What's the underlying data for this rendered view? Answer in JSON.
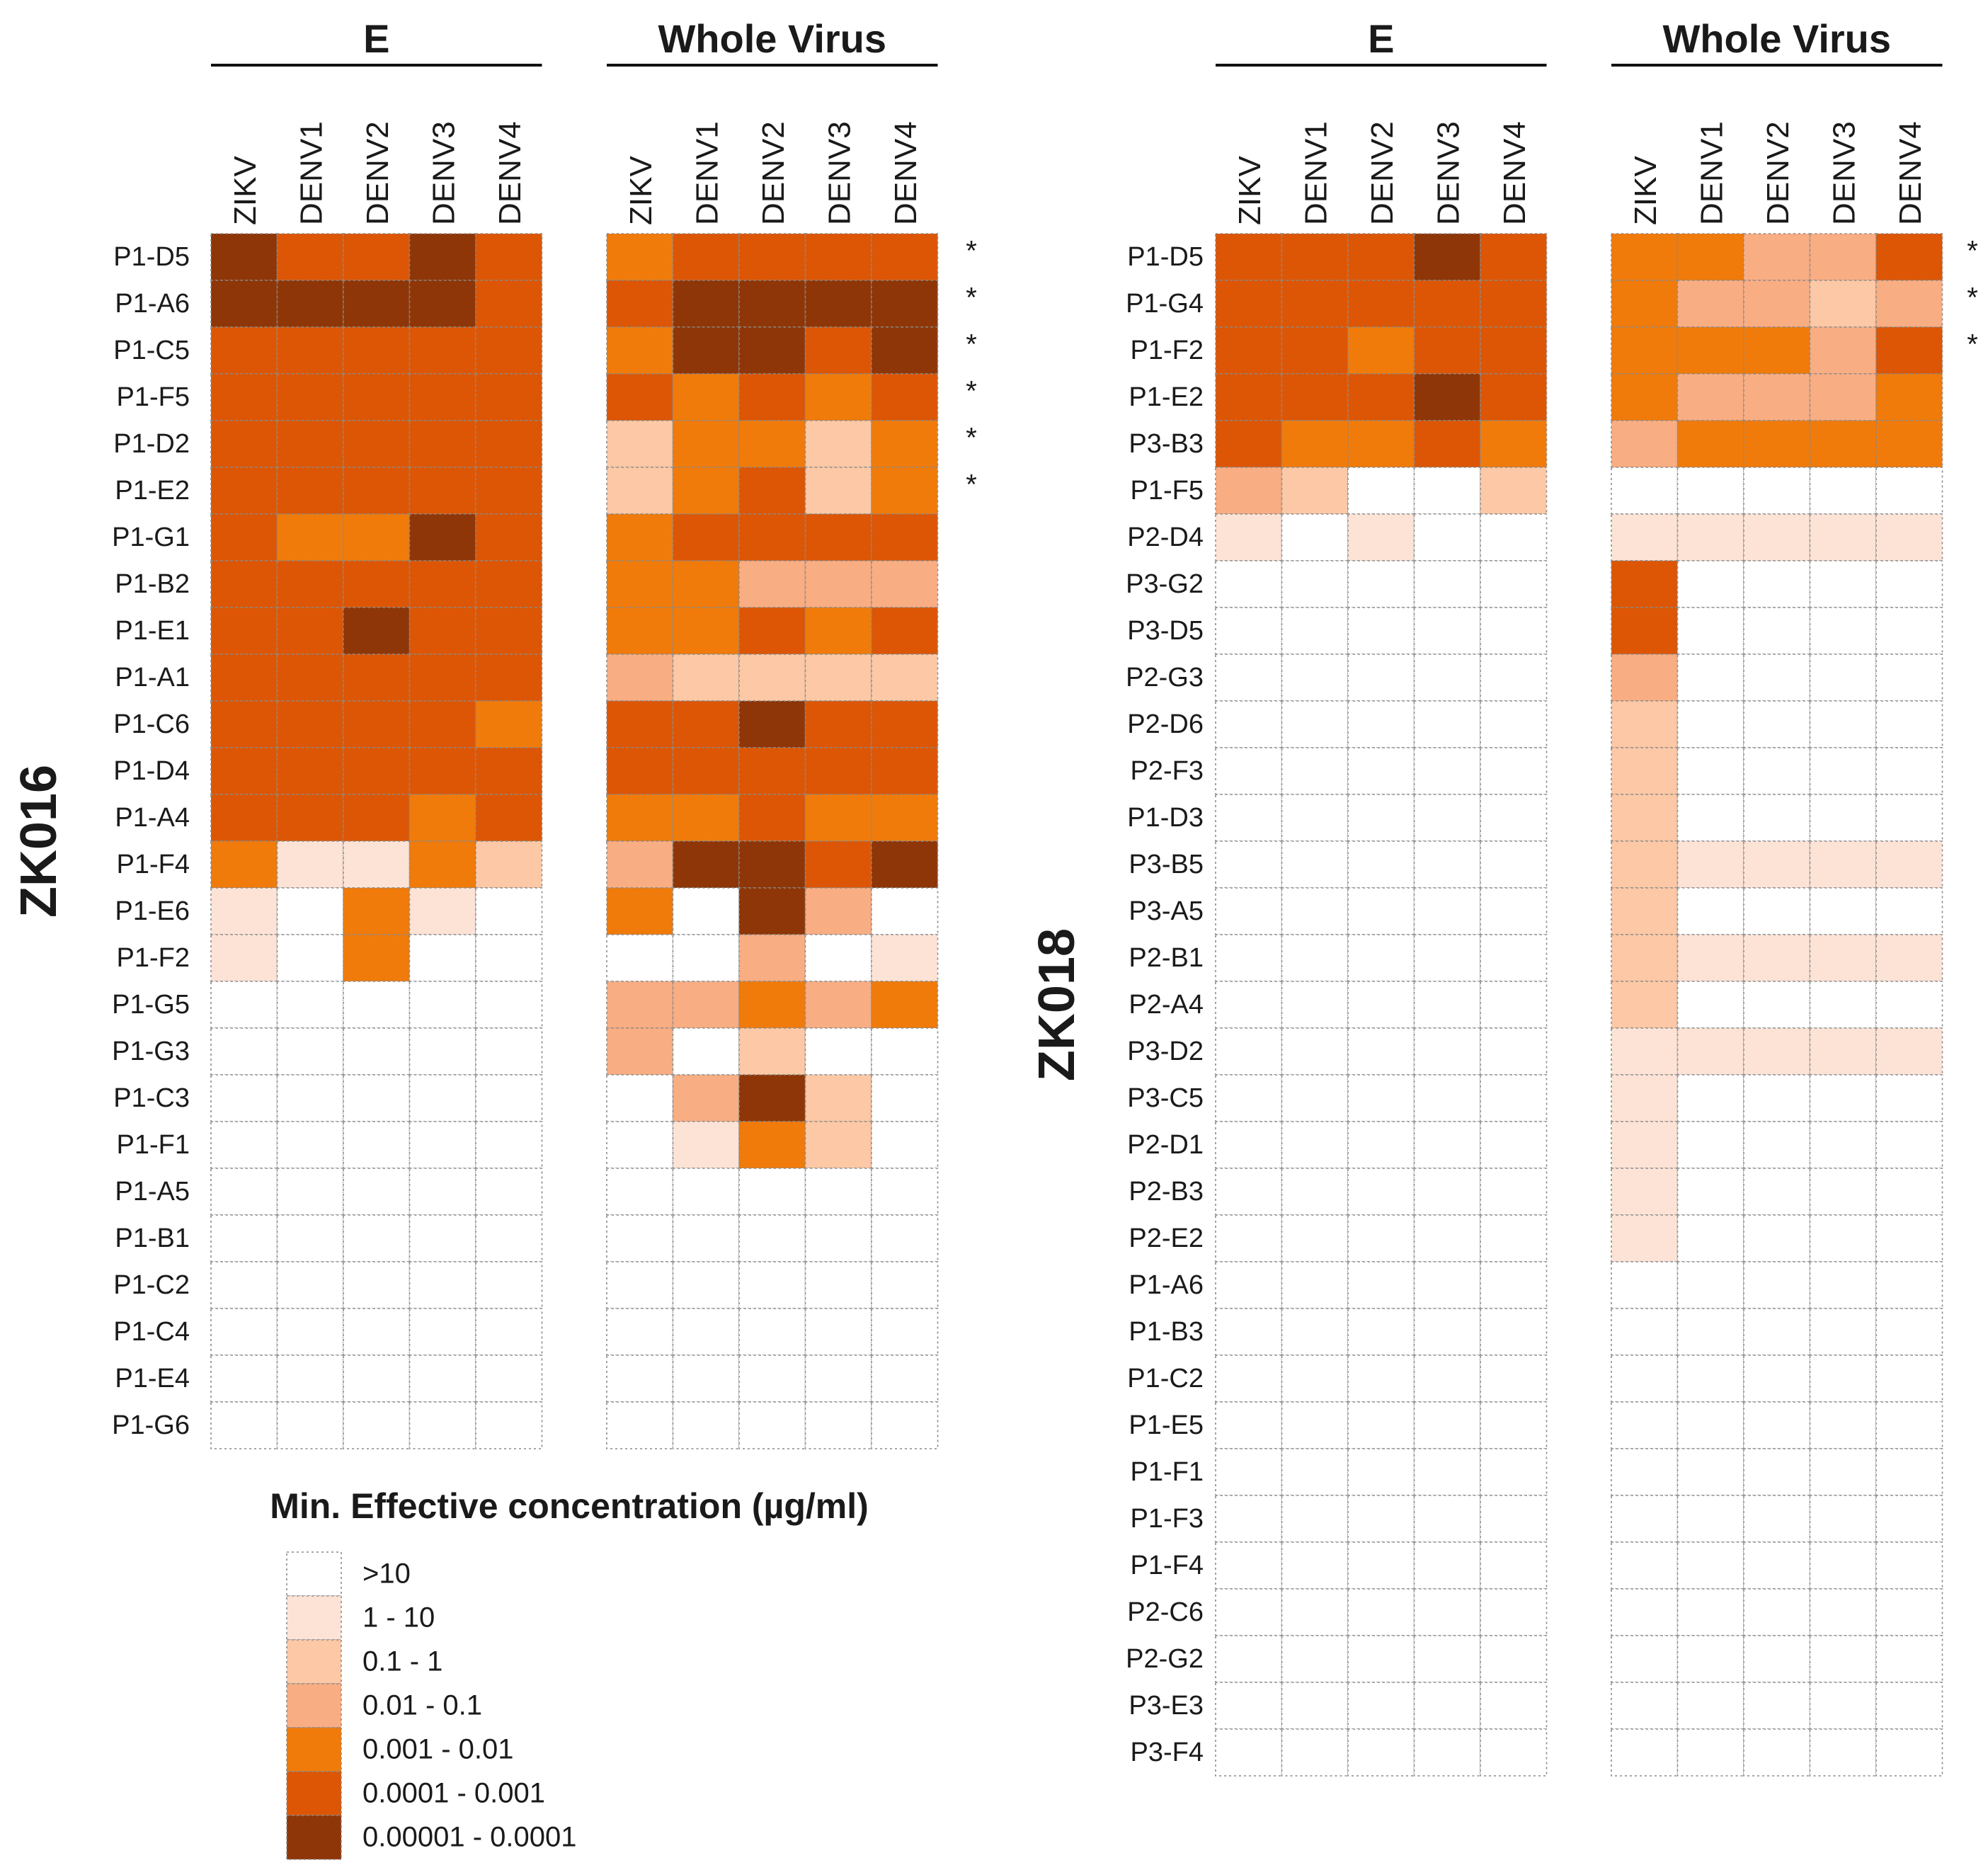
{
  "chart_data": [
    {
      "type": "heatmap",
      "name": "ZK016",
      "groups": [
        {
          "title": "E",
          "columns": [
            "ZIKV",
            "DENV1",
            "DENV2",
            "DENV3",
            "DENV4"
          ]
        },
        {
          "title": "Whole Virus",
          "columns": [
            "ZIKV",
            "DENV1",
            "DENV2",
            "DENV3",
            "DENV4"
          ]
        }
      ],
      "rows": [
        {
          "label": "P1-D5",
          "star": "*",
          "E": [
            6,
            5,
            5,
            6,
            5
          ],
          "WV": [
            4,
            5,
            5,
            5,
            5
          ]
        },
        {
          "label": "P1-A6",
          "star": "*",
          "E": [
            6,
            6,
            6,
            6,
            5
          ],
          "WV": [
            5,
            6,
            6,
            6,
            6
          ]
        },
        {
          "label": "P1-C5",
          "star": "*",
          "E": [
            5,
            5,
            5,
            5,
            5
          ],
          "WV": [
            4,
            6,
            6,
            5,
            6
          ]
        },
        {
          "label": "P1-F5",
          "star": "*",
          "E": [
            5,
            5,
            5,
            5,
            5
          ],
          "WV": [
            5,
            4,
            5,
            4,
            5
          ]
        },
        {
          "label": "P1-D2",
          "star": "*",
          "E": [
            5,
            5,
            5,
            5,
            5
          ],
          "WV": [
            2,
            4,
            4,
            2,
            4
          ]
        },
        {
          "label": "P1-E2",
          "star": "*",
          "E": [
            5,
            5,
            5,
            5,
            5
          ],
          "WV": [
            2,
            4,
            5,
            2,
            4
          ]
        },
        {
          "label": "P1-G1",
          "star": "",
          "E": [
            5,
            4,
            4,
            6,
            5
          ],
          "WV": [
            4,
            5,
            5,
            5,
            5
          ]
        },
        {
          "label": "P1-B2",
          "star": "",
          "E": [
            5,
            5,
            5,
            5,
            5
          ],
          "WV": [
            4,
            4,
            3,
            3,
            3
          ]
        },
        {
          "label": "P1-E1",
          "star": "",
          "E": [
            5,
            5,
            6,
            5,
            5
          ],
          "WV": [
            4,
            4,
            5,
            4,
            5
          ]
        },
        {
          "label": "P1-A1",
          "star": "",
          "E": [
            5,
            5,
            5,
            5,
            5
          ],
          "WV": [
            3,
            2,
            2,
            2,
            2
          ]
        },
        {
          "label": "P1-C6",
          "star": "",
          "E": [
            5,
            5,
            5,
            5,
            4
          ],
          "WV": [
            5,
            5,
            6,
            5,
            5
          ]
        },
        {
          "label": "P1-D4",
          "star": "",
          "E": [
            5,
            5,
            5,
            5,
            5
          ],
          "WV": [
            5,
            5,
            5,
            5,
            5
          ]
        },
        {
          "label": "P1-A4",
          "star": "",
          "E": [
            5,
            5,
            5,
            4,
            5
          ],
          "WV": [
            4,
            4,
            5,
            4,
            4
          ]
        },
        {
          "label": "P1-F4",
          "star": "",
          "E": [
            4,
            1,
            1,
            4,
            2
          ],
          "WV": [
            3,
            6,
            6,
            5,
            6
          ]
        },
        {
          "label": "P1-E6",
          "star": "",
          "E": [
            1,
            0,
            4,
            1,
            0
          ],
          "WV": [
            4,
            0,
            6,
            3,
            0
          ]
        },
        {
          "label": "P1-F2",
          "star": "",
          "E": [
            1,
            0,
            4,
            0,
            0
          ],
          "WV": [
            0,
            0,
            3,
            0,
            1
          ]
        },
        {
          "label": "P1-G5",
          "star": "",
          "E": [
            0,
            0,
            0,
            0,
            0
          ],
          "WV": [
            3,
            3,
            4,
            3,
            4
          ]
        },
        {
          "label": "P1-G3",
          "star": "",
          "E": [
            0,
            0,
            0,
            0,
            0
          ],
          "WV": [
            3,
            0,
            2,
            0,
            0
          ]
        },
        {
          "label": "P1-C3",
          "star": "",
          "E": [
            0,
            0,
            0,
            0,
            0
          ],
          "WV": [
            0,
            3,
            6,
            2,
            0
          ]
        },
        {
          "label": "P1-F1",
          "star": "",
          "E": [
            0,
            0,
            0,
            0,
            0
          ],
          "WV": [
            0,
            1,
            4,
            2,
            0
          ]
        },
        {
          "label": "P1-A5",
          "star": "",
          "E": [
            0,
            0,
            0,
            0,
            0
          ],
          "WV": [
            0,
            0,
            0,
            0,
            0
          ]
        },
        {
          "label": "P1-B1",
          "star": "",
          "E": [
            0,
            0,
            0,
            0,
            0
          ],
          "WV": [
            0,
            0,
            0,
            0,
            0
          ]
        },
        {
          "label": "P1-C2",
          "star": "",
          "E": [
            0,
            0,
            0,
            0,
            0
          ],
          "WV": [
            0,
            0,
            0,
            0,
            0
          ]
        },
        {
          "label": "P1-C4",
          "star": "",
          "E": [
            0,
            0,
            0,
            0,
            0
          ],
          "WV": [
            0,
            0,
            0,
            0,
            0
          ]
        },
        {
          "label": "P1-E4",
          "star": "",
          "E": [
            0,
            0,
            0,
            0,
            0
          ],
          "WV": [
            0,
            0,
            0,
            0,
            0
          ]
        },
        {
          "label": "P1-G6",
          "star": "",
          "E": [
            0,
            0,
            0,
            0,
            0
          ],
          "WV": [
            0,
            0,
            0,
            0,
            0
          ]
        }
      ]
    },
    {
      "type": "heatmap",
      "name": "ZK018",
      "groups": [
        {
          "title": "E",
          "columns": [
            "ZIKV",
            "DENV1",
            "DENV2",
            "DENV3",
            "DENV4"
          ]
        },
        {
          "title": "Whole Virus",
          "columns": [
            "ZIKV",
            "DENV1",
            "DENV2",
            "DENV3",
            "DENV4"
          ]
        }
      ],
      "rows": [
        {
          "label": "P1-D5",
          "star": "*",
          "E": [
            5,
            5,
            5,
            6,
            5
          ],
          "WV": [
            4,
            4,
            3,
            3,
            5
          ]
        },
        {
          "label": "P1-G4",
          "star": "*",
          "E": [
            5,
            5,
            5,
            5,
            5
          ],
          "WV": [
            4,
            3,
            3,
            2,
            3
          ]
        },
        {
          "label": "P1-F2",
          "star": "*",
          "E": [
            5,
            5,
            4,
            5,
            5
          ],
          "WV": [
            4,
            4,
            4,
            3,
            5
          ]
        },
        {
          "label": "P1-E2",
          "star": "",
          "E": [
            5,
            5,
            5,
            6,
            5
          ],
          "WV": [
            4,
            3,
            3,
            3,
            4
          ]
        },
        {
          "label": "P3-B3",
          "star": "",
          "E": [
            5,
            4,
            4,
            5,
            4
          ],
          "WV": [
            3,
            4,
            4,
            4,
            4
          ]
        },
        {
          "label": "P1-F5",
          "star": "",
          "E": [
            3,
            2,
            0,
            0,
            2
          ],
          "WV": [
            0,
            0,
            0,
            0,
            0
          ]
        },
        {
          "label": "P2-D4",
          "star": "",
          "E": [
            1,
            0,
            1,
            0,
            0
          ],
          "WV": [
            1,
            1,
            1,
            1,
            1
          ]
        },
        {
          "label": "P3-G2",
          "star": "",
          "E": [
            0,
            0,
            0,
            0,
            0
          ],
          "WV": [
            5,
            0,
            0,
            0,
            0
          ]
        },
        {
          "label": "P3-D5",
          "star": "",
          "E": [
            0,
            0,
            0,
            0,
            0
          ],
          "WV": [
            5,
            0,
            0,
            0,
            0
          ]
        },
        {
          "label": "P2-G3",
          "star": "",
          "E": [
            0,
            0,
            0,
            0,
            0
          ],
          "WV": [
            3,
            0,
            0,
            0,
            0
          ]
        },
        {
          "label": "P2-D6",
          "star": "",
          "E": [
            0,
            0,
            0,
            0,
            0
          ],
          "WV": [
            2,
            0,
            0,
            0,
            0
          ]
        },
        {
          "label": "P2-F3",
          "star": "",
          "E": [
            0,
            0,
            0,
            0,
            0
          ],
          "WV": [
            2,
            0,
            0,
            0,
            0
          ]
        },
        {
          "label": "P1-D3",
          "star": "",
          "E": [
            0,
            0,
            0,
            0,
            0
          ],
          "WV": [
            2,
            0,
            0,
            0,
            0
          ]
        },
        {
          "label": "P3-B5",
          "star": "",
          "E": [
            0,
            0,
            0,
            0,
            0
          ],
          "WV": [
            2,
            1,
            1,
            1,
            1
          ]
        },
        {
          "label": "P3-A5",
          "star": "",
          "E": [
            0,
            0,
            0,
            0,
            0
          ],
          "WV": [
            2,
            0,
            0,
            0,
            0
          ]
        },
        {
          "label": "P2-B1",
          "star": "",
          "E": [
            0,
            0,
            0,
            0,
            0
          ],
          "WV": [
            2,
            1,
            1,
            1,
            1
          ]
        },
        {
          "label": "P2-A4",
          "star": "",
          "E": [
            0,
            0,
            0,
            0,
            0
          ],
          "WV": [
            2,
            0,
            0,
            0,
            0
          ]
        },
        {
          "label": "P3-D2",
          "star": "",
          "E": [
            0,
            0,
            0,
            0,
            0
          ],
          "WV": [
            1,
            1,
            1,
            1,
            1
          ]
        },
        {
          "label": "P3-C5",
          "star": "",
          "E": [
            0,
            0,
            0,
            0,
            0
          ],
          "WV": [
            1,
            0,
            0,
            0,
            0
          ]
        },
        {
          "label": "P2-D1",
          "star": "",
          "E": [
            0,
            0,
            0,
            0,
            0
          ],
          "WV": [
            1,
            0,
            0,
            0,
            0
          ]
        },
        {
          "label": "P2-B3",
          "star": "",
          "E": [
            0,
            0,
            0,
            0,
            0
          ],
          "WV": [
            1,
            0,
            0,
            0,
            0
          ]
        },
        {
          "label": "P2-E2",
          "star": "",
          "E": [
            0,
            0,
            0,
            0,
            0
          ],
          "WV": [
            1,
            0,
            0,
            0,
            0
          ]
        },
        {
          "label": "P1-A6",
          "star": "",
          "E": [
            0,
            0,
            0,
            0,
            0
          ],
          "WV": [
            0,
            0,
            0,
            0,
            0
          ]
        },
        {
          "label": "P1-B3",
          "star": "",
          "E": [
            0,
            0,
            0,
            0,
            0
          ],
          "WV": [
            0,
            0,
            0,
            0,
            0
          ]
        },
        {
          "label": "P1-C2",
          "star": "",
          "E": [
            0,
            0,
            0,
            0,
            0
          ],
          "WV": [
            0,
            0,
            0,
            0,
            0
          ]
        },
        {
          "label": "P1-E5",
          "star": "",
          "E": [
            0,
            0,
            0,
            0,
            0
          ],
          "WV": [
            0,
            0,
            0,
            0,
            0
          ]
        },
        {
          "label": "P1-F1",
          "star": "",
          "E": [
            0,
            0,
            0,
            0,
            0
          ],
          "WV": [
            0,
            0,
            0,
            0,
            0
          ]
        },
        {
          "label": "P1-F3",
          "star": "",
          "E": [
            0,
            0,
            0,
            0,
            0
          ],
          "WV": [
            0,
            0,
            0,
            0,
            0
          ]
        },
        {
          "label": "P1-F4",
          "star": "",
          "E": [
            0,
            0,
            0,
            0,
            0
          ],
          "WV": [
            0,
            0,
            0,
            0,
            0
          ]
        },
        {
          "label": "P2-C6",
          "star": "",
          "E": [
            0,
            0,
            0,
            0,
            0
          ],
          "WV": [
            0,
            0,
            0,
            0,
            0
          ]
        },
        {
          "label": "P2-G2",
          "star": "",
          "E": [
            0,
            0,
            0,
            0,
            0
          ],
          "WV": [
            0,
            0,
            0,
            0,
            0
          ]
        },
        {
          "label": "P3-E3",
          "star": "",
          "E": [
            0,
            0,
            0,
            0,
            0
          ],
          "WV": [
            0,
            0,
            0,
            0,
            0
          ]
        },
        {
          "label": "P3-F4",
          "star": "",
          "E": [
            0,
            0,
            0,
            0,
            0
          ],
          "WV": [
            0,
            0,
            0,
            0,
            0
          ]
        }
      ]
    }
  ],
  "legend": {
    "title": "Min. Effective concentration (µg/ml)",
    "levels": [
      {
        "label": ">10",
        "color": "#ffffff"
      },
      {
        "label": "1 - 10",
        "color": "#fde3d6"
      },
      {
        "label": "0.1 - 1",
        "color": "#fcc8a5"
      },
      {
        "label": "0.01 - 0.1",
        "color": "#f9ad82"
      },
      {
        "label": "0.001 - 0.01",
        "color": "#f07b0a"
      },
      {
        "label": "0.0001 - 0.001",
        "color": "#dc5605"
      },
      {
        "label": "0.00001 - 0.0001",
        "color": "#8e3607"
      }
    ]
  }
}
